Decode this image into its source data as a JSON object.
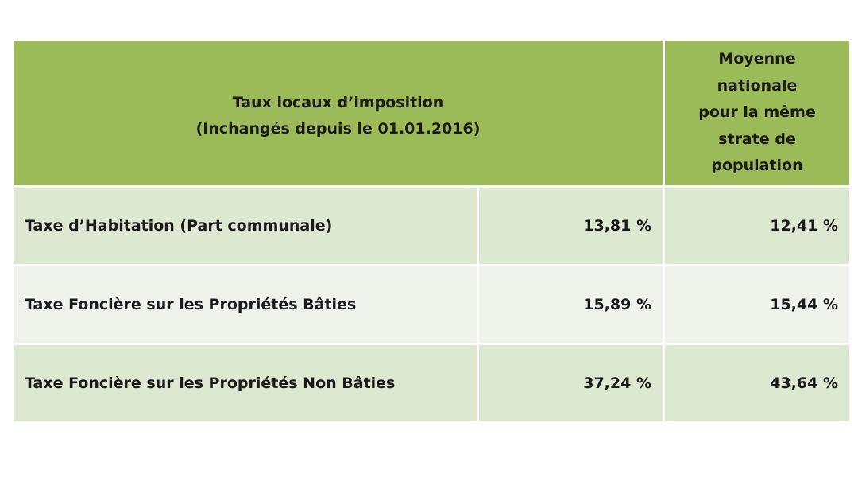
{
  "header": {
    "title_line1": "Taux locaux d’imposition",
    "title_line2": "(Inchangés depuis le 01.01.2016)",
    "national_lines": [
      "Moyenne",
      "nationale",
      "pour la même",
      "strate de",
      "population"
    ]
  },
  "rows": [
    {
      "label": "Taxe d’Habitation (Part communale)",
      "local": "13,81 %",
      "national": "12,41 %"
    },
    {
      "label": "Taxe Foncière sur les Propriétés Bâties",
      "local": "15,89 %",
      "national": "15,44 %"
    },
    {
      "label": "Taxe Foncière sur les Propriétés Non Bâties",
      "local": "37,24 %",
      "national": "43,64 %"
    }
  ],
  "colors": {
    "header_green": "#9bbb59",
    "row_odd": "#dde8d0",
    "row_even": "#eef2ea"
  }
}
